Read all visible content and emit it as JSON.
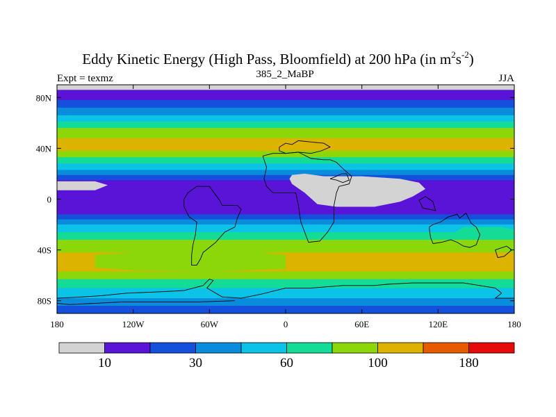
{
  "chart_data": {
    "type": "heatmap",
    "title": "Eddy Kinetic Energy (High Pass, Bloomfield) at 200 hPa (in m",
    "title_unit_m_exp": "2",
    "title_unit_s": "s",
    "title_unit_s_exp": "-2",
    "title_close": ")",
    "subtitle_left": "Expt = texmz",
    "subtitle_center": "385_2_MaBP",
    "subtitle_right": "JJA",
    "x_ticks": [
      {
        "value": -180,
        "label": "180"
      },
      {
        "value": -120,
        "label": "120W"
      },
      {
        "value": -60,
        "label": "60W"
      },
      {
        "value": 0,
        "label": "0"
      },
      {
        "value": 60,
        "label": "60E"
      },
      {
        "value": 120,
        "label": "120E"
      },
      {
        "value": 180,
        "label": "180"
      }
    ],
    "y_ticks": [
      {
        "value": 80,
        "label": "80N"
      },
      {
        "value": 40,
        "label": "40N"
      },
      {
        "value": 0,
        "label": "0"
      },
      {
        "value": -40,
        "label": "40S"
      },
      {
        "value": -80,
        "label": "80S"
      }
    ],
    "xlim": [
      -180,
      180
    ],
    "ylim": [
      -90,
      90
    ],
    "colorbar": {
      "colors": [
        "#d3d3d3",
        "#5a14d8",
        "#1450dc",
        "#0a8cdc",
        "#0ac3e6",
        "#14dc96",
        "#8cd70a",
        "#dcb400",
        "#e65a00",
        "#e60a0a"
      ],
      "tick_labels": [
        {
          "boundary": 1,
          "label": "10"
        },
        {
          "boundary": 3,
          "label": "30"
        },
        {
          "boundary": 5,
          "label": "60"
        },
        {
          "boundary": 7,
          "label": "100"
        },
        {
          "boundary": 9,
          "label": "180"
        }
      ]
    },
    "zonal_bands": [
      {
        "lat_max": 90,
        "lat_min": 86,
        "color": "#d3d3d3"
      },
      {
        "lat_max": 86,
        "lat_min": 78,
        "color": "#5a14d8"
      },
      {
        "lat_max": 78,
        "lat_min": 72,
        "color": "#1450dc"
      },
      {
        "lat_max": 72,
        "lat_min": 66,
        "color": "#0a8cdc"
      },
      {
        "lat_max": 66,
        "lat_min": 61,
        "color": "#0ac3e6"
      },
      {
        "lat_max": 61,
        "lat_min": 56,
        "color": "#14dc96"
      },
      {
        "lat_max": 56,
        "lat_min": 48,
        "color": "#8cd70a"
      },
      {
        "lat_max": 48,
        "lat_min": 38,
        "color": "#dcb400"
      },
      {
        "lat_max": 38,
        "lat_min": 33,
        "color": "#8cd70a"
      },
      {
        "lat_max": 33,
        "lat_min": 28,
        "color": "#14dc96"
      },
      {
        "lat_max": 28,
        "lat_min": 23,
        "color": "#0ac3e6"
      },
      {
        "lat_max": 23,
        "lat_min": 19,
        "color": "#0a8cdc"
      },
      {
        "lat_max": 19,
        "lat_min": 15,
        "color": "#1450dc"
      },
      {
        "lat_max": 15,
        "lat_min": -12,
        "color": "#5a14d8"
      },
      {
        "lat_max": -12,
        "lat_min": -16,
        "color": "#1450dc"
      },
      {
        "lat_max": -16,
        "lat_min": -20,
        "color": "#0a8cdc"
      },
      {
        "lat_max": -20,
        "lat_min": -26,
        "color": "#0ac3e6"
      },
      {
        "lat_max": -26,
        "lat_min": -32,
        "color": "#14dc96"
      },
      {
        "lat_max": -32,
        "lat_min": -42,
        "color": "#8cd70a"
      },
      {
        "lat_max": -42,
        "lat_min": -57,
        "color": "#dcb400"
      },
      {
        "lat_max": -57,
        "lat_min": -63,
        "color": "#8cd70a"
      },
      {
        "lat_max": -63,
        "lat_min": -70,
        "color": "#14dc96"
      },
      {
        "lat_max": -70,
        "lat_min": -78,
        "color": "#0ac3e6"
      },
      {
        "lat_max": -78,
        "lat_min": -84,
        "color": "#0a8cdc"
      },
      {
        "lat_max": -84,
        "lat_min": -90,
        "color": "#1450dc"
      }
    ],
    "anomaly_regions": [
      {
        "name": "low-eke-region-west",
        "color": "#d3d3d3",
        "points": [
          [
            -180,
            14
          ],
          [
            -150,
            14
          ],
          [
            -140,
            11
          ],
          [
            -150,
            7
          ],
          [
            -180,
            7
          ]
        ]
      },
      {
        "name": "low-eke-region-east",
        "color": "#d3d3d3",
        "points": [
          [
            5,
            19
          ],
          [
            15,
            20
          ],
          [
            30,
            18
          ],
          [
            60,
            18
          ],
          [
            90,
            16
          ],
          [
            105,
            13
          ],
          [
            110,
            8
          ],
          [
            100,
            2
          ],
          [
            90,
            -2
          ],
          [
            70,
            -6
          ],
          [
            40,
            -6
          ],
          [
            25,
            -4
          ],
          [
            15,
            5
          ],
          [
            5,
            12
          ],
          [
            3,
            16
          ]
        ]
      },
      {
        "name": "storm-track-tongue-south",
        "color": "#8cd70a",
        "points": [
          [
            -150,
            -44
          ],
          [
            -120,
            -42
          ],
          [
            -60,
            -40
          ],
          [
            -20,
            -42
          ],
          [
            0,
            -44
          ],
          [
            0,
            -55
          ],
          [
            -60,
            -57
          ],
          [
            -120,
            -56
          ],
          [
            -150,
            -54
          ]
        ]
      },
      {
        "name": "storm-track-tongue-east",
        "color": "#14dc96",
        "points": [
          [
            140,
            -22
          ],
          [
            170,
            -22
          ],
          [
            180,
            -24
          ],
          [
            180,
            -32
          ],
          [
            150,
            -32
          ],
          [
            130,
            -28
          ]
        ]
      }
    ],
    "coastlines": [
      [
        [
          -5,
          41
        ],
        [
          0,
          44
        ],
        [
          5,
          43
        ],
        [
          10,
          46
        ],
        [
          20,
          45
        ],
        [
          30,
          44
        ],
        [
          35,
          41
        ],
        [
          28,
          38
        ],
        [
          20,
          36
        ],
        [
          10,
          37
        ],
        [
          0,
          36
        ],
        [
          -5,
          38
        ],
        [
          -5,
          41
        ]
      ],
      [
        [
          -18,
          34
        ],
        [
          -10,
          36
        ],
        [
          0,
          36
        ],
        [
          10,
          37
        ],
        [
          20,
          32
        ],
        [
          30,
          31
        ],
        [
          35,
          31
        ],
        [
          40,
          29
        ],
        [
          45,
          24
        ],
        [
          52,
          18
        ],
        [
          50,
          12
        ],
        [
          42,
          10
        ],
        [
          40,
          5
        ],
        [
          38,
          -5
        ],
        [
          38,
          -18
        ],
        [
          33,
          -26
        ],
        [
          27,
          -33
        ],
        [
          18,
          -34
        ],
        [
          12,
          -18
        ],
        [
          10,
          -5
        ],
        [
          8,
          5
        ],
        [
          -5,
          5
        ],
        [
          -10,
          5
        ],
        [
          -15,
          10
        ],
        [
          -17,
          16
        ],
        [
          -15,
          25
        ],
        [
          -18,
          34
        ]
      ],
      [
        [
          35,
          16
        ],
        [
          40,
          15
        ],
        [
          45,
          13
        ],
        [
          50,
          15
        ],
        [
          48,
          20
        ],
        [
          44,
          20
        ],
        [
          40,
          18
        ],
        [
          35,
          16
        ]
      ],
      [
        [
          105,
          -1
        ],
        [
          110,
          2
        ],
        [
          116,
          -2
        ],
        [
          118,
          -9
        ],
        [
          113,
          -8
        ],
        [
          108,
          -7
        ],
        [
          105,
          -1
        ]
      ],
      [
        [
          113,
          -22
        ],
        [
          116,
          -20
        ],
        [
          122,
          -18
        ],
        [
          128,
          -14
        ],
        [
          135,
          -12
        ],
        [
          137,
          -15
        ],
        [
          142,
          -11
        ],
        [
          144,
          -15
        ],
        [
          146,
          -19
        ],
        [
          150,
          -22
        ],
        [
          153,
          -28
        ],
        [
          150,
          -36
        ],
        [
          145,
          -38
        ],
        [
          140,
          -37
        ],
        [
          135,
          -34
        ],
        [
          130,
          -32
        ],
        [
          123,
          -34
        ],
        [
          116,
          -35
        ],
        [
          114,
          -30
        ],
        [
          113,
          -22
        ]
      ],
      [
        [
          165,
          -40
        ],
        [
          174,
          -37
        ],
        [
          178,
          -40
        ],
        [
          172,
          -45
        ],
        [
          167,
          -46
        ],
        [
          165,
          -40
        ]
      ],
      [
        [
          -52,
          -1
        ],
        [
          -50,
          -5
        ],
        [
          -38,
          -5
        ],
        [
          -35,
          -8
        ],
        [
          -38,
          -15
        ],
        [
          -40,
          -22
        ],
        [
          -48,
          -26
        ],
        [
          -55,
          -34
        ],
        [
          -60,
          -38
        ],
        [
          -65,
          -42
        ],
        [
          -67,
          -47
        ],
        [
          -70,
          -52
        ],
        [
          -74,
          -52
        ],
        [
          -74,
          -44
        ],
        [
          -73,
          -36
        ],
        [
          -71,
          -28
        ],
        [
          -70,
          -18
        ],
        [
          -76,
          -14
        ],
        [
          -80,
          -6
        ],
        [
          -80,
          0
        ],
        [
          -77,
          5
        ],
        [
          -70,
          10
        ],
        [
          -60,
          10
        ],
        [
          -52,
          -1
        ]
      ],
      [
        [
          -180,
          -78
        ],
        [
          -160,
          -77
        ],
        [
          -145,
          -76
        ],
        [
          -125,
          -74
        ],
        [
          -100,
          -73
        ],
        [
          -80,
          -72
        ],
        [
          -65,
          -68
        ],
        [
          -60,
          -63
        ],
        [
          -57,
          -64
        ],
        [
          -62,
          -70
        ],
        [
          -50,
          -77
        ],
        [
          -35,
          -78
        ],
        [
          -20,
          -75
        ],
        [
          0,
          -70
        ],
        [
          20,
          -70
        ],
        [
          45,
          -68
        ],
        [
          70,
          -68
        ],
        [
          80,
          -67
        ],
        [
          100,
          -66
        ],
        [
          120,
          -66
        ],
        [
          140,
          -66
        ],
        [
          165,
          -70
        ],
        [
          170,
          -74
        ],
        [
          165,
          -78
        ],
        [
          180,
          -78
        ]
      ],
      [
        [
          -180,
          -82
        ],
        [
          -170,
          -83
        ],
        [
          -150,
          -82
        ],
        [
          -130,
          -81
        ],
        [
          -100,
          -81
        ],
        [
          -70,
          -81
        ],
        [
          -40,
          -80
        ]
      ]
    ]
  }
}
